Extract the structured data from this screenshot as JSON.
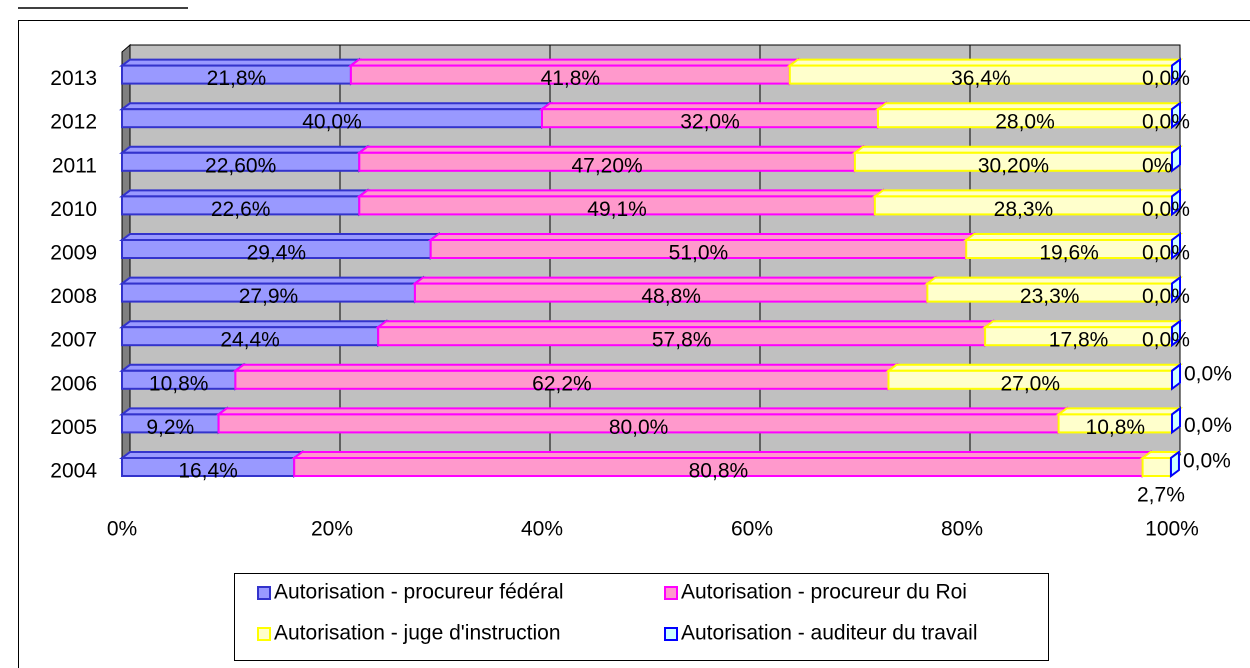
{
  "chart_data": {
    "type": "bar",
    "orientation": "horizontal",
    "stacked": true,
    "categories": [
      "2004",
      "2005",
      "2006",
      "2007",
      "2008",
      "2009",
      "2010",
      "2011",
      "2012",
      "2013"
    ],
    "series": [
      {
        "name": "Autorisation - procureur fédéral",
        "color": "#9999ff",
        "edge": "#3333cc",
        "values": [
          16.4,
          9.2,
          10.8,
          24.4,
          27.9,
          29.4,
          22.6,
          22.6,
          40.0,
          21.8
        ],
        "value_labels": [
          "16,4%",
          "9,2%",
          "10,8%",
          "24,4%",
          "27,9%",
          "29,4%",
          "22,6%",
          "22,60%",
          "40,0%",
          "21,8%"
        ]
      },
      {
        "name": "Autorisation - procureur du Roi",
        "color": "#ff99cc",
        "edge": "#ff00ff",
        "values": [
          80.8,
          80.0,
          62.2,
          57.8,
          48.8,
          51.0,
          49.1,
          47.2,
          32.0,
          41.8
        ],
        "value_labels": [
          "80,8%",
          "80,0%",
          "62,2%",
          "57,8%",
          "48,8%",
          "51,0%",
          "49,1%",
          "47,20%",
          "32,0%",
          "41,8%"
        ]
      },
      {
        "name": "Autorisation - juge d'instruction",
        "color": "#ffffcc",
        "edge": "#ffff00",
        "values": [
          2.7,
          10.8,
          27.0,
          17.8,
          23.3,
          19.6,
          28.3,
          30.2,
          28.0,
          36.4
        ],
        "value_labels": [
          "2,7%",
          "10,8%",
          "27,0%",
          "17,8%",
          "23,3%",
          "19,6%",
          "28,3%",
          "30,20%",
          "28,0%",
          "36,4%"
        ]
      },
      {
        "name": "Autorisation - auditeur du travail",
        "color": "#ccffff",
        "edge": "#0000ff",
        "values": [
          0.0,
          0.0,
          0.0,
          0.0,
          0.0,
          0.0,
          0.0,
          0,
          0.0,
          0.0
        ],
        "value_labels": [
          "0,0%",
          "0,0%",
          "0,0%",
          "0,0%",
          "0,0%",
          "0,0%",
          "0,0%",
          "0%",
          "0,0%",
          "0,0%"
        ]
      }
    ],
    "xlim": [
      0,
      100
    ],
    "xticks": [
      {
        "value": 0,
        "label": "0%"
      },
      {
        "value": 20,
        "label": "20%"
      },
      {
        "value": 40,
        "label": "40%"
      },
      {
        "value": 60,
        "label": "60%"
      },
      {
        "value": 80,
        "label": "80%"
      },
      {
        "value": 100,
        "label": "100%"
      }
    ],
    "grid": true,
    "legend": "bottom"
  }
}
